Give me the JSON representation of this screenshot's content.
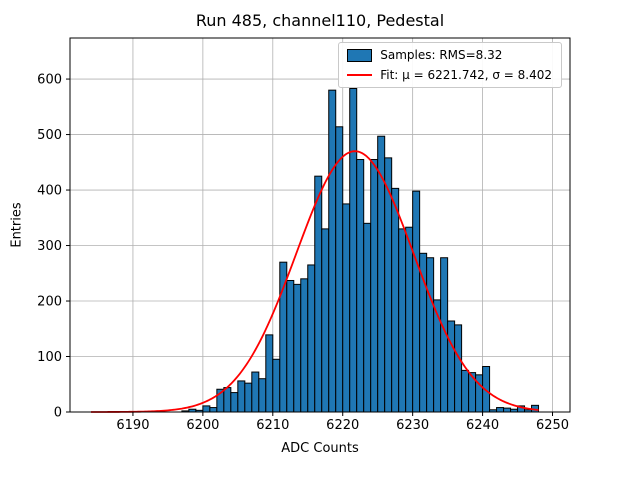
{
  "chart_data": {
    "type": "bar",
    "subtype": "histogram-with-gaussian-fit",
    "title": "Run 485, channel110, Pedestal",
    "xlabel": "ADC Counts",
    "ylabel": "Entries",
    "xlim": [
      6181.0,
      6252.5
    ],
    "ylim": [
      0,
      674
    ],
    "x_ticks": [
      6190,
      6200,
      6210,
      6220,
      6230,
      6240,
      6250
    ],
    "y_ticks": [
      0,
      100,
      200,
      300,
      400,
      500,
      600
    ],
    "grid": true,
    "legend_position": "upper right",
    "legend": {
      "samples_label": "Samples: RMS=8.32",
      "fit_label": "Fit: μ = 6221.742, σ = 8.402"
    },
    "colors": {
      "bar_fill": "#1f77b4",
      "bar_edge": "#000000",
      "fit_line": "#ff0000",
      "grid_line": "#b0b0b0",
      "spine": "#000000",
      "legend_edge": "#c9c9c9"
    },
    "histogram": {
      "bin_start": 6197,
      "bin_width": 1,
      "counts": [
        2,
        5,
        3,
        11,
        8,
        41,
        44,
        35,
        56,
        52,
        72,
        60,
        139,
        95,
        270,
        237,
        230,
        240,
        265,
        425,
        330,
        580,
        514,
        375,
        583,
        455,
        340,
        455,
        497,
        458,
        403,
        330,
        333,
        398,
        286,
        278,
        202,
        278,
        164,
        157,
        75,
        71,
        67,
        82,
        4,
        8,
        7,
        5,
        11,
        4,
        12
      ]
    },
    "fit": {
      "mu": 6221.742,
      "sigma": 8.402,
      "amplitude": 470,
      "x_range": [
        6184.0,
        6248.0
      ]
    },
    "stats": {
      "rms": 8.32
    }
  }
}
